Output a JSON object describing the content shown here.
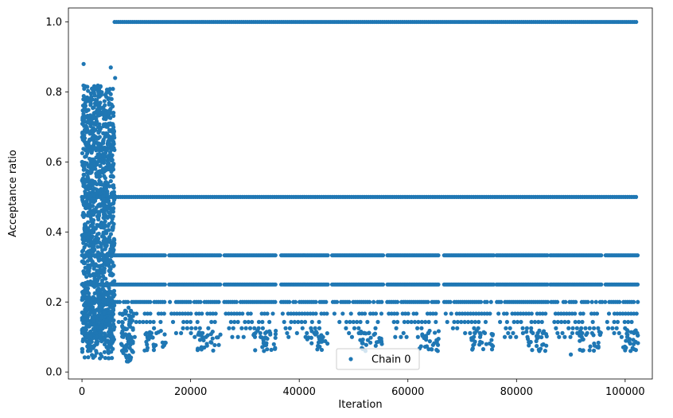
{
  "chart_data": {
    "type": "scatter",
    "title": "",
    "xlabel": "Iteration",
    "ylabel": "Acceptance ratio",
    "xlim": [
      -2500,
      105000
    ],
    "ylim": [
      -0.02,
      1.04
    ],
    "xticks": [
      0,
      20000,
      40000,
      60000,
      80000,
      100000
    ],
    "xtick_labels": [
      "0",
      "20000",
      "40000",
      "60000",
      "80000",
      "100000"
    ],
    "yticks": [
      0.0,
      0.2,
      0.4,
      0.6,
      0.8,
      1.0
    ],
    "ytick_labels": [
      "0.0",
      "0.2",
      "0.4",
      "0.6",
      "0.8",
      "1.0"
    ],
    "grid": false,
    "legend_position": "bottom-center",
    "series": [
      {
        "name": "Chain 0",
        "color": "#1f77b4",
        "marker": "circle",
        "x_range": [
          0,
          102400
        ],
        "burn_in_end": 6000,
        "burn_in_y_range": [
          0.03,
          0.88
        ],
        "levels": [
          {
            "y": 1.0,
            "x_range": [
              6000,
              102400
            ]
          },
          {
            "y": 0.5,
            "x_range": [
              0,
              102400
            ]
          },
          {
            "y": 0.3333,
            "x_range": [
              0,
              102400
            ]
          },
          {
            "y": 0.25,
            "x_range": [
              0,
              102400
            ]
          },
          {
            "y": 0.2,
            "x_range": [
              0,
              102400
            ]
          },
          {
            "y": 0.1667,
            "x_range": [
              0,
              102400
            ]
          },
          {
            "y": 0.1429,
            "x_range": [
              0,
              102400
            ]
          },
          {
            "y": 0.125,
            "x_range": [
              0,
              102400
            ]
          },
          {
            "y": 0.1111,
            "x_range": [
              0,
              102400
            ]
          },
          {
            "y": 0.1,
            "x_range": [
              0,
              102400
            ]
          }
        ],
        "plateau_ranges": [
          [
            6000,
            15500
          ],
          [
            16000,
            25500
          ],
          [
            26000,
            35800
          ],
          [
            36500,
            45500
          ],
          [
            46000,
            55500
          ],
          [
            56000,
            65800
          ],
          [
            66500,
            75800
          ],
          [
            76200,
            85800
          ],
          [
            86200,
            95800
          ],
          [
            96200,
            102400
          ]
        ],
        "low_value_min": 0.03,
        "sample_points": [
          {
            "x": 300,
            "y": 0.88
          },
          {
            "x": 5300,
            "y": 0.87
          },
          {
            "x": 6100,
            "y": 0.84
          },
          {
            "x": 8500,
            "y": 0.03
          },
          {
            "x": 33500,
            "y": 0.06
          },
          {
            "x": 65500,
            "y": 0.06
          },
          {
            "x": 90000,
            "y": 0.05
          },
          {
            "x": 101000,
            "y": 0.06
          }
        ]
      }
    ]
  }
}
